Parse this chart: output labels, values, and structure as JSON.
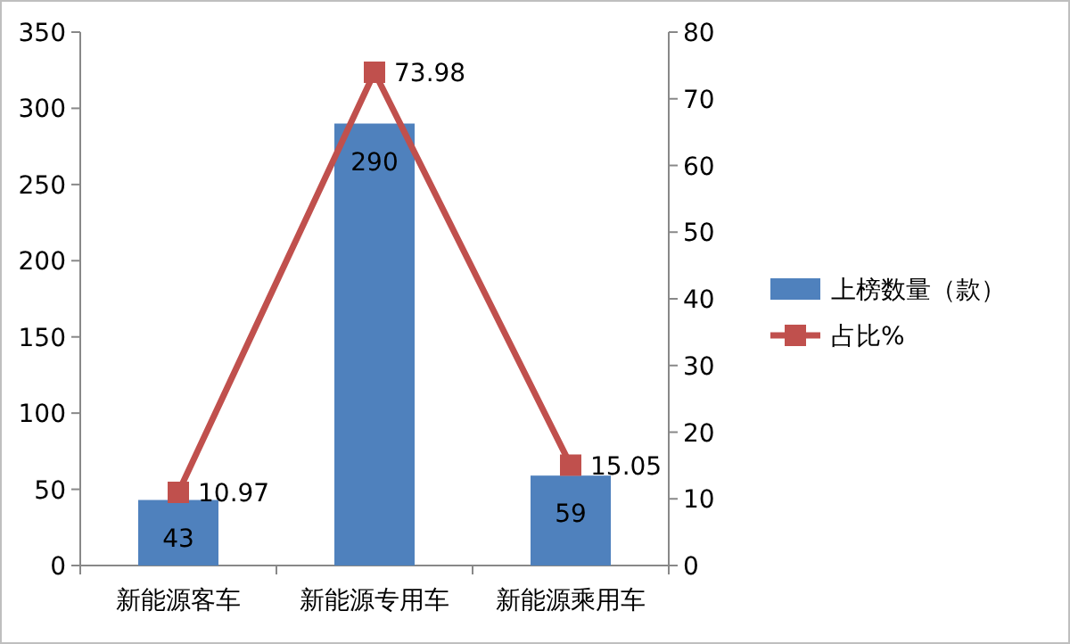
{
  "chart_data": {
    "type": "bar",
    "categories": [
      "新能源客车",
      "新能源专用车",
      "新能源乘用车"
    ],
    "series": [
      {
        "name": "上榜数量（款）",
        "color": "#4f81bd",
        "values": [
          43,
          290,
          59
        ]
      },
      {
        "name": "占比%",
        "type": "line",
        "axis": "y2",
        "color": "#c0504d",
        "values": [
          10.97,
          73.98,
          15.05
        ]
      }
    ],
    "ylim": [
      0,
      350
    ],
    "yticks": [
      0,
      50,
      100,
      150,
      200,
      250,
      300,
      350
    ],
    "y2lim": [
      0,
      80
    ],
    "y2ticks": [
      0,
      10,
      20,
      30,
      40,
      50,
      60,
      70,
      80
    ],
    "data_labels": true,
    "legend": "right",
    "marker": "square"
  }
}
